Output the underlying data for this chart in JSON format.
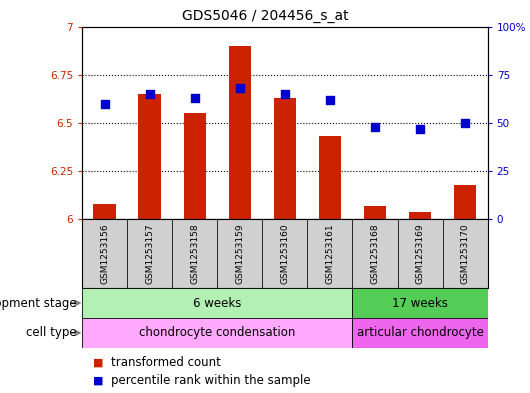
{
  "title": "GDS5046 / 204456_s_at",
  "samples": [
    "GSM1253156",
    "GSM1253157",
    "GSM1253158",
    "GSM1253159",
    "GSM1253160",
    "GSM1253161",
    "GSM1253168",
    "GSM1253169",
    "GSM1253170"
  ],
  "transformed_count": [
    6.08,
    6.65,
    6.55,
    6.9,
    6.63,
    6.43,
    6.07,
    6.04,
    6.18
  ],
  "percentile_rank": [
    60,
    65,
    63,
    68,
    65,
    62,
    48,
    47,
    50
  ],
  "ylim_left": [
    6.0,
    7.0
  ],
  "ylim_right": [
    0,
    100
  ],
  "yticks_left": [
    6.0,
    6.25,
    6.5,
    6.75,
    7.0
  ],
  "ytick_labels_left": [
    "6",
    "6.25",
    "6.5",
    "6.75",
    "7"
  ],
  "yticks_right": [
    0,
    25,
    50,
    75,
    100
  ],
  "ytick_labels_right": [
    "0",
    "25",
    "50",
    "75",
    "100%"
  ],
  "bar_color": "#cc2200",
  "dot_color": "#0000cc",
  "bar_width": 0.5,
  "dot_size": 35,
  "background_color": "#ffffff",
  "plot_bg_color": "#ffffff",
  "left_axis_color": "#cc2200",
  "right_axis_color": "#0000cc",
  "development_stage_groups": [
    {
      "label": "6 weeks",
      "start": 0,
      "end": 5,
      "color": "#b3f0b3"
    },
    {
      "label": "17 weeks",
      "start": 6,
      "end": 8,
      "color": "#55cc55"
    }
  ],
  "cell_type_groups": [
    {
      "label": "chondrocyte condensation",
      "start": 0,
      "end": 5,
      "color": "#ffaaff"
    },
    {
      "label": "articular chondrocyte",
      "start": 6,
      "end": 8,
      "color": "#ee66ee"
    }
  ],
  "dev_stage_label": "development stage",
  "cell_type_label": "cell type",
  "legend_bar_label": "transformed count",
  "legend_dot_label": "percentile rank within the sample",
  "title_fontsize": 10,
  "tick_fontsize": 7.5,
  "label_fontsize": 8.5,
  "annot_fontsize": 8.5,
  "sample_fontsize": 6.5,
  "grid_yticks": [
    6.25,
    6.5,
    6.75
  ]
}
